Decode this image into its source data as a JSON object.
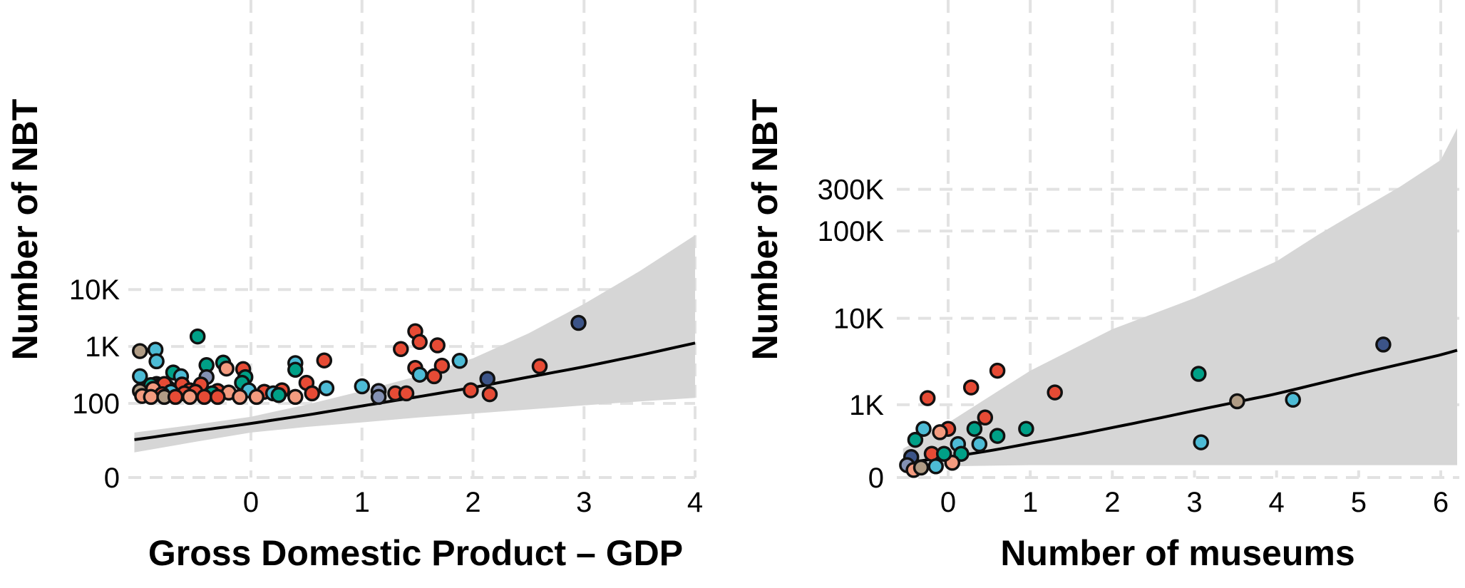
{
  "chart_data": [
    {
      "type": "scatter",
      "title": "",
      "xlabel": "Gross Domestic Product – GDP",
      "ylabel": "Number of NBT",
      "x_scale": "linear",
      "y_scale": "asinh",
      "xlim": [
        -1.05,
        4.0
      ],
      "ylim": [
        0,
        40000
      ],
      "grid": true,
      "x_ticks": [
        {
          "value": 0,
          "label": "0"
        },
        {
          "value": 1,
          "label": "1"
        },
        {
          "value": 2,
          "label": "2"
        },
        {
          "value": 3,
          "label": "3"
        },
        {
          "value": 4,
          "label": "4"
        }
      ],
      "y_ticks": [
        {
          "value": 0,
          "label": "0"
        },
        {
          "value": 100,
          "label": "100"
        },
        {
          "value": 1000,
          "label": "1K"
        },
        {
          "value": 10000,
          "label": "10K"
        }
      ],
      "fit_line": {
        "x": [
          -1.05,
          -0.5,
          0,
          0.5,
          1,
          1.5,
          2,
          2.5,
          3,
          3.5,
          4.0
        ],
        "y": [
          22,
          32,
          44,
          62,
          90,
          130,
          190,
          290,
          440,
          700,
          1150
        ]
      },
      "ci_band": {
        "x": [
          -1.05,
          -0.5,
          0,
          0.5,
          1,
          1.5,
          2,
          2.5,
          3,
          3.5,
          4.0
        ],
        "lower": [
          12,
          20,
          30,
          38,
          46,
          56,
          66,
          78,
          92,
          108,
          125
        ],
        "upper": [
          30,
          42,
          58,
          95,
          165,
          300,
          620,
          1700,
          5600,
          21000,
          90000
        ]
      },
      "points": [
        {
          "x": 2.95,
          "y": 2600,
          "color": "#3c5488"
        },
        {
          "x": 1.48,
          "y": 1850,
          "color": "#e64b35"
        },
        {
          "x": -0.48,
          "y": 1500,
          "color": "#00a087"
        },
        {
          "x": 1.52,
          "y": 1200,
          "color": "#e64b35"
        },
        {
          "x": 1.68,
          "y": 1050,
          "color": "#e64b35"
        },
        {
          "x": 1.35,
          "y": 900,
          "color": "#e64b35"
        },
        {
          "x": -0.86,
          "y": 880,
          "color": "#4dbbd5"
        },
        {
          "x": -1.0,
          "y": 830,
          "color": "#b09c85"
        },
        {
          "x": -0.85,
          "y": 550,
          "color": "#4dbbd5"
        },
        {
          "x": 0.66,
          "y": 570,
          "color": "#e64b35"
        },
        {
          "x": -0.25,
          "y": 520,
          "color": "#00a087"
        },
        {
          "x": 0.4,
          "y": 510,
          "color": "#4dbbd5"
        },
        {
          "x": 1.88,
          "y": 560,
          "color": "#4dbbd5"
        },
        {
          "x": 2.6,
          "y": 450,
          "color": "#e64b35"
        },
        {
          "x": -0.4,
          "y": 470,
          "color": "#00a087"
        },
        {
          "x": -0.22,
          "y": 410,
          "color": "#f39b7f"
        },
        {
          "x": 1.72,
          "y": 460,
          "color": "#e64b35"
        },
        {
          "x": 1.48,
          "y": 420,
          "color": "#e64b35"
        },
        {
          "x": -0.07,
          "y": 400,
          "color": "#e64b35"
        },
        {
          "x": 0.4,
          "y": 390,
          "color": "#00a087"
        },
        {
          "x": -0.7,
          "y": 350,
          "color": "#00a087"
        },
        {
          "x": -1.0,
          "y": 300,
          "color": "#4dbbd5"
        },
        {
          "x": -0.63,
          "y": 300,
          "color": "#4dbbd5"
        },
        {
          "x": -0.4,
          "y": 290,
          "color": "#8491b4"
        },
        {
          "x": -0.05,
          "y": 290,
          "color": "#00a087"
        },
        {
          "x": 1.65,
          "y": 300,
          "color": "#e64b35"
        },
        {
          "x": 1.52,
          "y": 320,
          "color": "#4dbbd5"
        },
        {
          "x": 2.13,
          "y": 270,
          "color": "#3c5488"
        },
        {
          "x": 0.5,
          "y": 230,
          "color": "#e64b35"
        },
        {
          "x": -0.08,
          "y": 230,
          "color": "#00a087"
        },
        {
          "x": -0.62,
          "y": 215,
          "color": "#e64b35"
        },
        {
          "x": -0.85,
          "y": 220,
          "color": "#4dbbd5"
        },
        {
          "x": -0.75,
          "y": 190,
          "color": "#00a087"
        },
        {
          "x": -0.82,
          "y": 205,
          "color": "#b09c85"
        },
        {
          "x": -0.45,
          "y": 215,
          "color": "#e64b35"
        },
        {
          "x": -0.9,
          "y": 210,
          "color": "#00a087"
        },
        {
          "x": -0.78,
          "y": 220,
          "color": "#e64b35"
        },
        {
          "x": 1.0,
          "y": 200,
          "color": "#4dbbd5"
        },
        {
          "x": 0.68,
          "y": 185,
          "color": "#4dbbd5"
        },
        {
          "x": 1.15,
          "y": 165,
          "color": "#8491b4"
        },
        {
          "x": 1.98,
          "y": 170,
          "color": "#e64b35"
        },
        {
          "x": -0.3,
          "y": 165,
          "color": "#e64b35"
        },
        {
          "x": -0.02,
          "y": 170,
          "color": "#4dbbd5"
        },
        {
          "x": 0.28,
          "y": 170,
          "color": "#e64b35"
        },
        {
          "x": -0.55,
          "y": 170,
          "color": "#e64b35"
        },
        {
          "x": -0.88,
          "y": 180,
          "color": "#f39b7f"
        },
        {
          "x": -1.0,
          "y": 165,
          "color": "#b09c85"
        },
        {
          "x": -0.72,
          "y": 160,
          "color": "#4dbbd5"
        },
        {
          "x": -0.5,
          "y": 160,
          "color": "#e64b35"
        },
        {
          "x": -0.2,
          "y": 155,
          "color": "#f39b7f"
        },
        {
          "x": 0.12,
          "y": 160,
          "color": "#e64b35"
        },
        {
          "x": 0.55,
          "y": 150,
          "color": "#e64b35"
        },
        {
          "x": 1.3,
          "y": 150,
          "color": "#e64b35"
        },
        {
          "x": 1.4,
          "y": 150,
          "color": "#e64b35"
        },
        {
          "x": 2.15,
          "y": 145,
          "color": "#e64b35"
        },
        {
          "x": -0.35,
          "y": 150,
          "color": "#00a087"
        },
        {
          "x": -0.6,
          "y": 150,
          "color": "#e64b35"
        },
        {
          "x": -0.8,
          "y": 145,
          "color": "#e64b35"
        },
        {
          "x": 0.2,
          "y": 150,
          "color": "#4dbbd5"
        },
        {
          "x": 0.25,
          "y": 140,
          "color": "#00a087"
        },
        {
          "x": 1.15,
          "y": 130,
          "color": "#8491b4"
        },
        {
          "x": -0.98,
          "y": 135,
          "color": "#f39b7f"
        },
        {
          "x": -0.9,
          "y": 130,
          "color": "#f39b7f"
        },
        {
          "x": -0.78,
          "y": 130,
          "color": "#b09c85"
        },
        {
          "x": -0.68,
          "y": 130,
          "color": "#e64b35"
        },
        {
          "x": -0.55,
          "y": 130,
          "color": "#f39b7f"
        },
        {
          "x": -0.42,
          "y": 130,
          "color": "#e64b35"
        },
        {
          "x": -0.3,
          "y": 130,
          "color": "#e64b35"
        },
        {
          "x": -0.1,
          "y": 130,
          "color": "#f39b7f"
        },
        {
          "x": 0.05,
          "y": 130,
          "color": "#f39b7f"
        },
        {
          "x": 0.4,
          "y": 130,
          "color": "#f39b7f"
        }
      ]
    },
    {
      "type": "scatter",
      "title": "",
      "xlabel": "Number of museums",
      "ylabel": "Number of NBT",
      "x_scale": "linear",
      "y_scale": "asinh",
      "xlim": [
        -0.55,
        6.2
      ],
      "ylim": [
        0,
        1500000
      ],
      "grid": true,
      "x_ticks": [
        {
          "value": 0,
          "label": "0"
        },
        {
          "value": 1,
          "label": "1"
        },
        {
          "value": 2,
          "label": "2"
        },
        {
          "value": 3,
          "label": "3"
        },
        {
          "value": 4,
          "label": "4"
        },
        {
          "value": 5,
          "label": "5"
        },
        {
          "value": 6,
          "label": "6"
        }
      ],
      "y_ticks": [
        {
          "value": 0,
          "label": "0"
        },
        {
          "value": 1000,
          "label": "1K"
        },
        {
          "value": 10000,
          "label": "10K"
        },
        {
          "value": 100000,
          "label": "100K"
        },
        {
          "value": 300000,
          "label": "300K"
        }
      ],
      "fit_line": {
        "x": [
          -0.55,
          0,
          1,
          2,
          3,
          4,
          5,
          6,
          6.2
        ],
        "y": [
          120,
          170,
          310,
          520,
          850,
          1350,
          2300,
          3800,
          4300
        ]
      },
      "ci_band": {
        "x": [
          -0.55,
          0,
          1,
          2,
          3,
          4,
          4.5,
          5,
          5.5,
          6,
          6.2
        ],
        "lower": [
          80,
          90,
          100,
          100,
          100,
          100,
          100,
          100,
          100,
          100,
          100
        ],
        "upper": [
          250,
          600,
          2500,
          7500,
          17000,
          45000,
          90000,
          170000,
          320000,
          650000,
          1500000
        ]
      },
      "points": [
        {
          "x": 5.3,
          "y": 5000,
          "color": "#3c5488"
        },
        {
          "x": 3.05,
          "y": 2300,
          "color": "#00a087"
        },
        {
          "x": 3.08,
          "y": 320,
          "color": "#4dbbd5"
        },
        {
          "x": 3.52,
          "y": 1100,
          "color": "#b09c85"
        },
        {
          "x": 4.2,
          "y": 1150,
          "color": "#4dbbd5"
        },
        {
          "x": 1.3,
          "y": 1400,
          "color": "#e64b35"
        },
        {
          "x": 0.6,
          "y": 2500,
          "color": "#e64b35"
        },
        {
          "x": 0.28,
          "y": 1600,
          "color": "#e64b35"
        },
        {
          "x": 0.95,
          "y": 500,
          "color": "#00a087"
        },
        {
          "x": -0.25,
          "y": 1200,
          "color": "#e64b35"
        },
        {
          "x": 0.32,
          "y": 500,
          "color": "#00a087"
        },
        {
          "x": 0.6,
          "y": 400,
          "color": "#00a087"
        },
        {
          "x": 0.45,
          "y": 700,
          "color": "#e64b35"
        },
        {
          "x": 0.12,
          "y": 300,
          "color": "#4dbbd5"
        },
        {
          "x": 0.0,
          "y": 500,
          "color": "#e64b35"
        },
        {
          "x": -0.1,
          "y": 450,
          "color": "#f39b7f"
        },
        {
          "x": -0.3,
          "y": 500,
          "color": "#4dbbd5"
        },
        {
          "x": -0.4,
          "y": 350,
          "color": "#00a087"
        },
        {
          "x": 0.38,
          "y": 300,
          "color": "#4dbbd5"
        },
        {
          "x": 0.16,
          "y": 200,
          "color": "#00a087"
        },
        {
          "x": -0.2,
          "y": 200,
          "color": "#e64b35"
        },
        {
          "x": -0.45,
          "y": 170,
          "color": "#3c5488"
        },
        {
          "x": -0.5,
          "y": 100,
          "color": "#8491b4"
        },
        {
          "x": -0.42,
          "y": 60,
          "color": "#f39b7f"
        },
        {
          "x": -0.33,
          "y": 80,
          "color": "#b09c85"
        },
        {
          "x": -0.15,
          "y": 90,
          "color": "#4dbbd5"
        },
        {
          "x": 0.05,
          "y": 120,
          "color": "#f39b7f"
        },
        {
          "x": -0.05,
          "y": 200,
          "color": "#00a087"
        }
      ]
    }
  ]
}
